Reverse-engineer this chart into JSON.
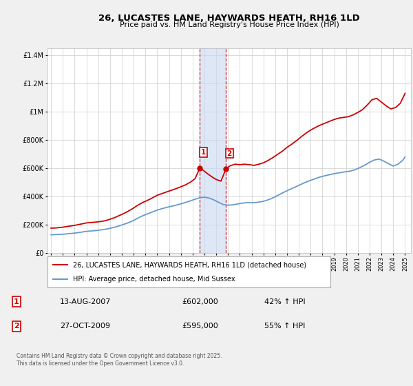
{
  "title": "26, LUCASTES LANE, HAYWARDS HEATH, RH16 1LD",
  "subtitle": "Price paid vs. HM Land Registry's House Price Index (HPI)",
  "legend_line1": "26, LUCASTES LANE, HAYWARDS HEATH, RH16 1LD (detached house)",
  "legend_line2": "HPI: Average price, detached house, Mid Sussex",
  "footer": "Contains HM Land Registry data © Crown copyright and database right 2025.\nThis data is licensed under the Open Government Licence v3.0.",
  "sale1_label": "1",
  "sale1_date": "13-AUG-2007",
  "sale1_price": "£602,000",
  "sale1_hpi": "42% ↑ HPI",
  "sale2_label": "2",
  "sale2_date": "27-OCT-2009",
  "sale2_price": "£595,000",
  "sale2_hpi": "55% ↑ HPI",
  "red_color": "#cc0000",
  "blue_color": "#6699cc",
  "bg_color": "#f0f0f0",
  "plot_bg": "#ffffff",
  "shade_color": "#c8d8f0",
  "ylim": [
    0,
    1450000
  ],
  "xlim_start": 1994.7,
  "xlim_end": 2025.5,
  "sale1_x": 2007.617,
  "sale1_y": 602000,
  "sale2_x": 2009.822,
  "sale2_y": 595000,
  "red_x": [
    1995.0,
    1995.3,
    1995.6,
    1996.0,
    1996.4,
    1996.8,
    1997.2,
    1997.6,
    1998.0,
    1998.4,
    1998.8,
    1999.2,
    1999.6,
    2000.0,
    2000.4,
    2000.8,
    2001.2,
    2001.6,
    2002.0,
    2002.4,
    2002.8,
    2003.2,
    2003.6,
    2004.0,
    2004.4,
    2004.8,
    2005.2,
    2005.6,
    2006.0,
    2006.4,
    2006.8,
    2007.2,
    2007.617,
    2007.9,
    2008.3,
    2008.7,
    2009.0,
    2009.4,
    2009.822,
    2010.2,
    2010.6,
    2011.0,
    2011.4,
    2011.8,
    2012.2,
    2012.6,
    2013.0,
    2013.4,
    2013.8,
    2014.2,
    2014.6,
    2015.0,
    2015.4,
    2015.8,
    2016.2,
    2016.6,
    2017.0,
    2017.4,
    2017.8,
    2018.2,
    2018.6,
    2019.0,
    2019.4,
    2019.8,
    2020.2,
    2020.6,
    2021.0,
    2021.4,
    2021.8,
    2022.2,
    2022.6,
    2023.0,
    2023.4,
    2023.8,
    2024.2,
    2024.6,
    2025.0
  ],
  "red_y": [
    175000,
    176000,
    178000,
    182000,
    187000,
    192000,
    198000,
    205000,
    212000,
    215000,
    218000,
    222000,
    228000,
    238000,
    250000,
    265000,
    280000,
    298000,
    318000,
    340000,
    358000,
    373000,
    390000,
    408000,
    420000,
    432000,
    443000,
    455000,
    468000,
    482000,
    500000,
    525000,
    602000,
    585000,
    558000,
    535000,
    520000,
    508000,
    595000,
    618000,
    628000,
    625000,
    628000,
    625000,
    620000,
    628000,
    638000,
    655000,
    675000,
    698000,
    720000,
    748000,
    770000,
    795000,
    822000,
    848000,
    870000,
    888000,
    905000,
    918000,
    932000,
    945000,
    955000,
    960000,
    965000,
    978000,
    995000,
    1015000,
    1048000,
    1085000,
    1095000,
    1068000,
    1042000,
    1020000,
    1030000,
    1060000,
    1130000
  ],
  "blue_x": [
    1995.0,
    1995.3,
    1995.6,
    1996.0,
    1996.4,
    1996.8,
    1997.2,
    1997.6,
    1998.0,
    1998.4,
    1998.8,
    1999.2,
    1999.6,
    2000.0,
    2000.4,
    2000.8,
    2001.2,
    2001.6,
    2002.0,
    2002.4,
    2002.8,
    2003.2,
    2003.6,
    2004.0,
    2004.4,
    2004.8,
    2005.2,
    2005.6,
    2006.0,
    2006.4,
    2006.8,
    2007.2,
    2007.6,
    2008.0,
    2008.4,
    2008.8,
    2009.2,
    2009.6,
    2010.0,
    2010.4,
    2010.8,
    2011.2,
    2011.6,
    2012.0,
    2012.4,
    2012.8,
    2013.2,
    2013.6,
    2014.0,
    2014.4,
    2014.8,
    2015.2,
    2015.6,
    2016.0,
    2016.4,
    2016.8,
    2017.2,
    2017.6,
    2018.0,
    2018.4,
    2018.8,
    2019.2,
    2019.6,
    2020.0,
    2020.4,
    2020.8,
    2021.2,
    2021.6,
    2022.0,
    2022.4,
    2022.8,
    2023.2,
    2023.6,
    2024.0,
    2024.4,
    2024.8,
    2025.0
  ],
  "blue_y": [
    128000,
    129000,
    130000,
    132000,
    135000,
    138000,
    142000,
    147000,
    152000,
    155000,
    158000,
    162000,
    167000,
    174000,
    182000,
    192000,
    203000,
    215000,
    230000,
    248000,
    264000,
    277000,
    290000,
    303000,
    313000,
    322000,
    330000,
    338000,
    347000,
    357000,
    368000,
    380000,
    390000,
    395000,
    388000,
    375000,
    358000,
    342000,
    338000,
    340000,
    346000,
    352000,
    356000,
    355000,
    357000,
    362000,
    370000,
    382000,
    398000,
    415000,
    432000,
    448000,
    463000,
    478000,
    494000,
    508000,
    520000,
    532000,
    542000,
    550000,
    558000,
    564000,
    570000,
    575000,
    580000,
    590000,
    605000,
    622000,
    642000,
    658000,
    665000,
    650000,
    632000,
    615000,
    628000,
    655000,
    680000
  ]
}
